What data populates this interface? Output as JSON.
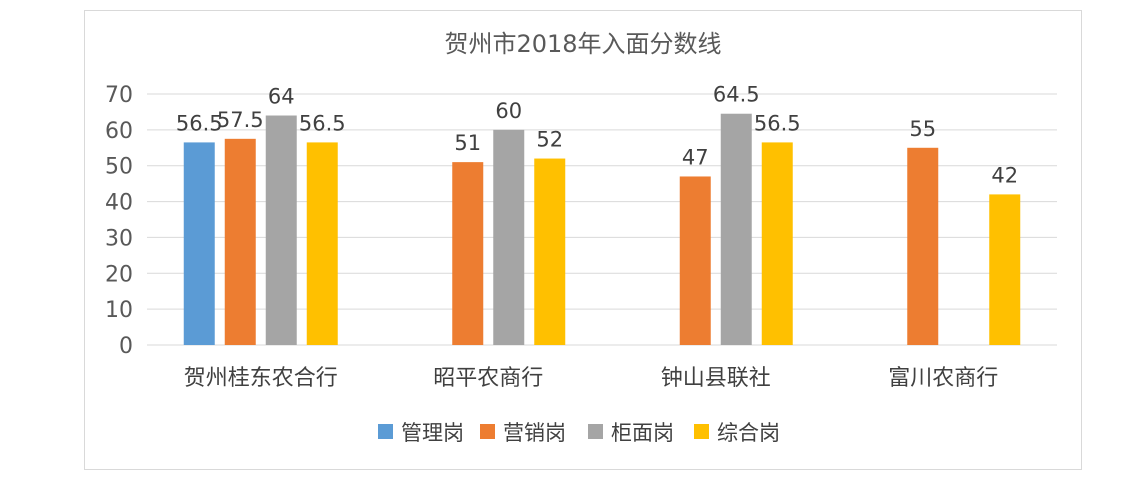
{
  "chart_data": {
    "type": "bar",
    "title": "贺州市2018年入面分数线",
    "xlabel": "",
    "ylabel": "",
    "ylim": [
      0,
      70
    ],
    "yticks": [
      0,
      10,
      20,
      30,
      40,
      50,
      60,
      70
    ],
    "grid": true,
    "legend_position": "bottom",
    "categories": [
      "贺州桂东农合行",
      "昭平农商行",
      "钟山县联社",
      "富川农商行"
    ],
    "series": [
      {
        "name": "管理岗",
        "color": "#5b9bd5",
        "values": [
          56.5,
          null,
          null,
          null
        ]
      },
      {
        "name": "营销岗",
        "color": "#ed7d31",
        "values": [
          57.5,
          51,
          47,
          55
        ]
      },
      {
        "name": "柜面岗",
        "color": "#a5a5a5",
        "values": [
          64,
          60,
          64.5,
          null
        ]
      },
      {
        "name": "综合岗",
        "color": "#ffc000",
        "values": [
          56.5,
          52,
          56.5,
          42
        ]
      }
    ]
  }
}
